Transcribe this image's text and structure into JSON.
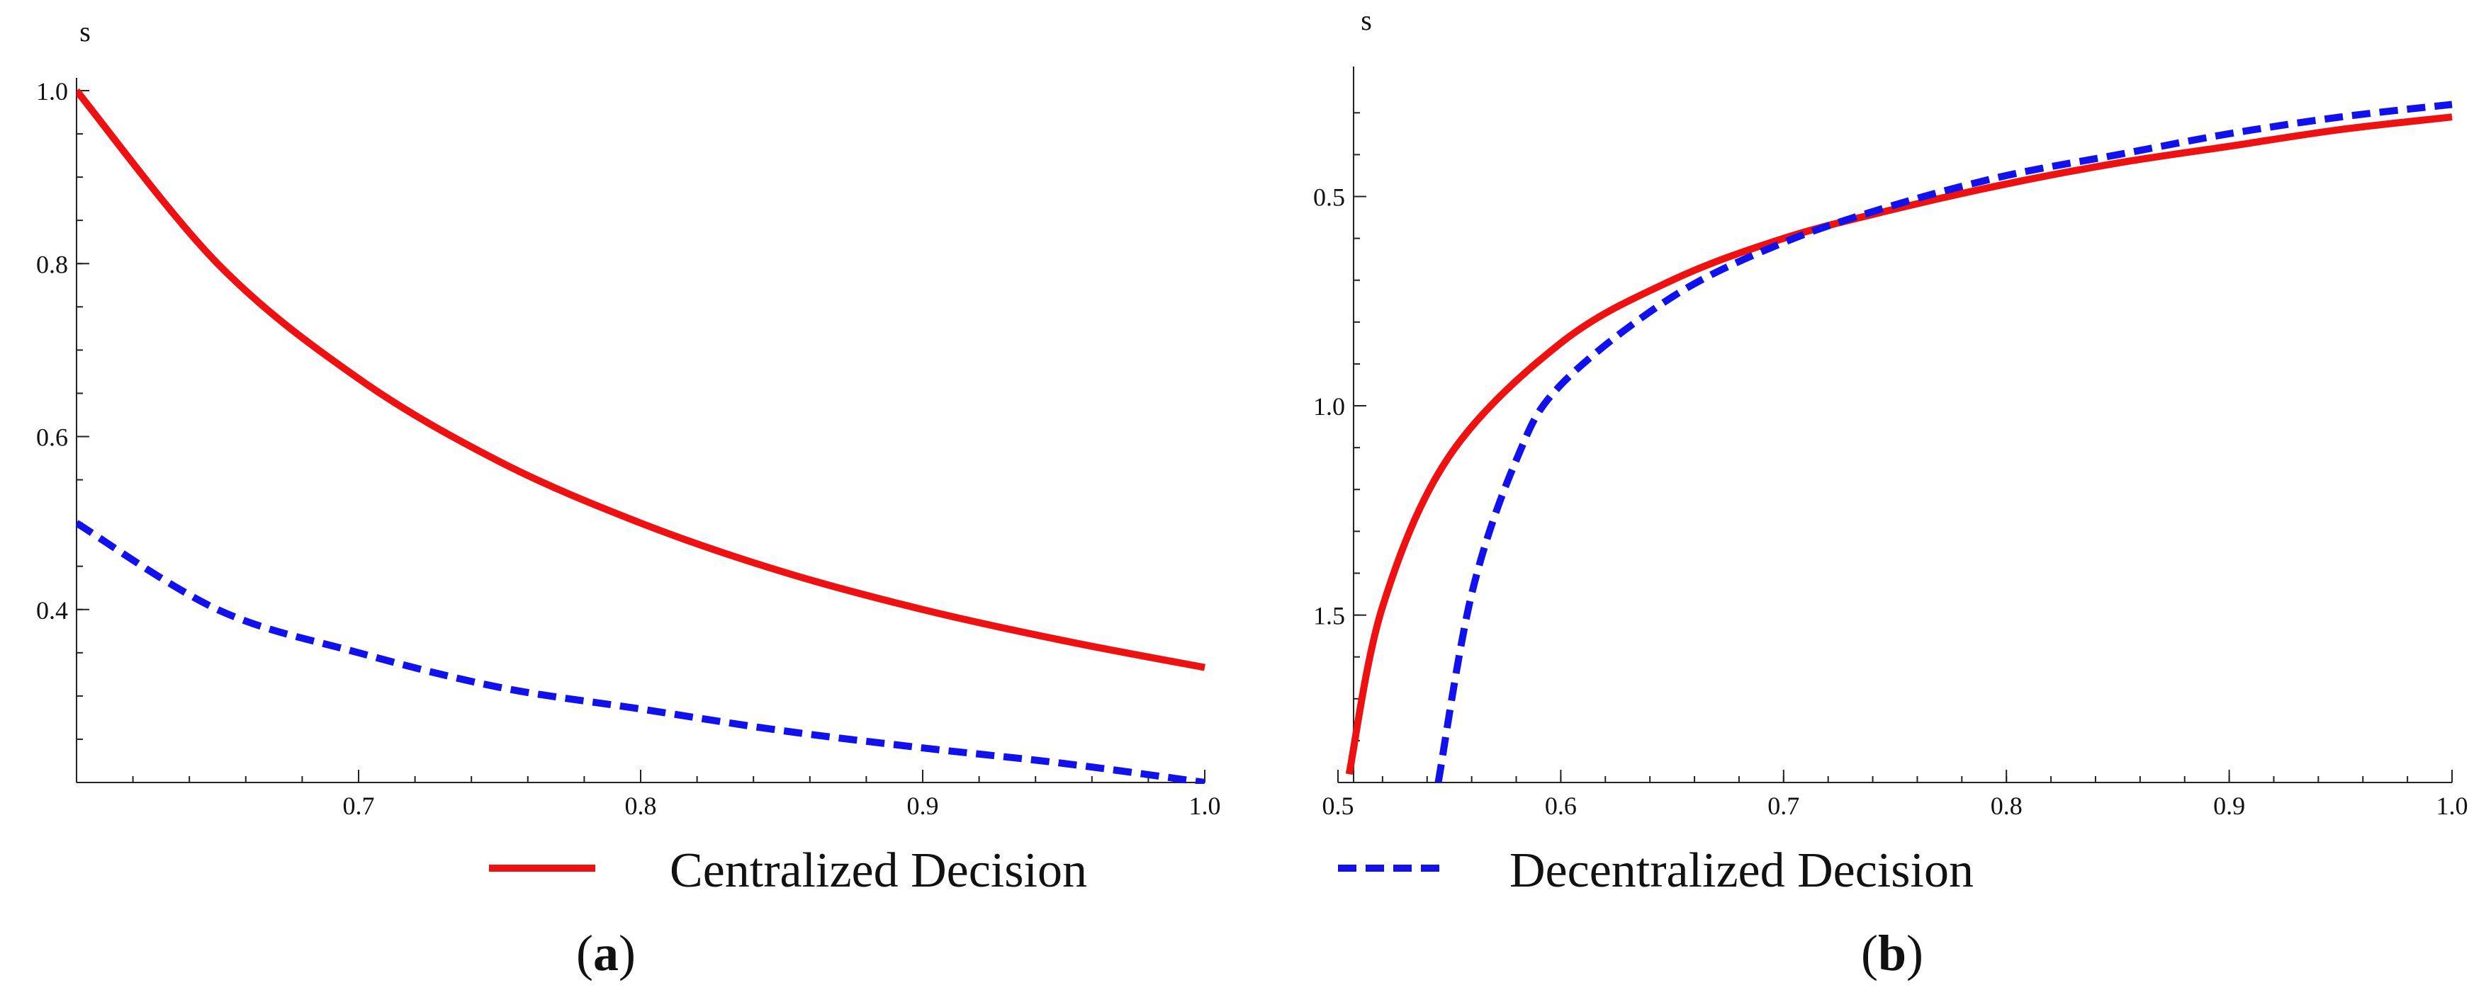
{
  "chart_data": [
    {
      "type": "line",
      "panel": "a",
      "ylabel": "s",
      "xlim": [
        0.6,
        1.0
      ],
      "ylim": [
        0.2,
        1.0
      ],
      "xticks": [
        0.7,
        0.8,
        0.9,
        1.0
      ],
      "xtick_labels": [
        "0.7",
        "0.8",
        "0.9",
        "1.0"
      ],
      "yticks": [
        0.4,
        0.6,
        0.8,
        1.0
      ],
      "ytick_labels": [
        "0.4",
        "0.6",
        "0.8",
        "1.0"
      ],
      "series": [
        {
          "name": "Centralized Decision",
          "style": "solid",
          "color": "#ee1111",
          "x": [
            0.6,
            0.65,
            0.7,
            0.75,
            0.8,
            0.85,
            0.9,
            0.95,
            1.0
          ],
          "y": [
            1.0,
            0.8,
            0.667,
            0.571,
            0.5,
            0.444,
            0.4,
            0.364,
            0.333
          ]
        },
        {
          "name": "Decentralized Decision",
          "style": "dashed",
          "color": "#1111ee",
          "x": [
            0.6,
            0.65,
            0.7,
            0.75,
            0.8,
            0.85,
            0.9,
            0.95,
            1.0
          ],
          "y": [
            0.5,
            0.4,
            0.35,
            0.31,
            0.285,
            0.26,
            0.24,
            0.222,
            0.2
          ]
        }
      ]
    },
    {
      "type": "line",
      "panel": "b",
      "ylabel": "s",
      "xlim": [
        0.5,
        1.0
      ],
      "ylim": [
        1.9,
        0.22
      ],
      "y_inverted": true,
      "xticks": [
        0.5,
        0.6,
        0.7,
        0.8,
        0.9,
        1.0
      ],
      "xtick_labels": [
        "0.5",
        "0.6",
        "0.7",
        "0.8",
        "0.9",
        "1.0"
      ],
      "yticks": [
        0.5,
        1.0,
        1.5
      ],
      "ytick_labels": [
        "0.5",
        "1.0",
        "1.5"
      ],
      "series": [
        {
          "name": "Centralized Decision",
          "style": "solid",
          "color": "#ee1111",
          "x": [
            0.505,
            0.52,
            0.55,
            0.6,
            0.65,
            0.7,
            0.75,
            0.8,
            0.85,
            0.9,
            0.95,
            1.0
          ],
          "y": [
            1.88,
            1.48,
            1.12,
            0.85,
            0.7,
            0.6,
            0.53,
            0.47,
            0.42,
            0.38,
            0.34,
            0.31
          ]
        },
        {
          "name": "Decentralized Decision",
          "style": "dashed",
          "color": "#1111ee",
          "x": [
            0.545,
            0.56,
            0.58,
            0.6,
            0.65,
            0.7,
            0.75,
            0.8,
            0.85,
            0.9,
            0.95,
            1.0
          ],
          "y": [
            1.9,
            1.45,
            1.13,
            0.95,
            0.74,
            0.61,
            0.52,
            0.45,
            0.4,
            0.35,
            0.31,
            0.28
          ]
        }
      ]
    }
  ],
  "legend": {
    "centralized": "Centralized Decision",
    "decentralized": "Decentralized Decision",
    "centralized_color": "#ee1111",
    "decentralized_color": "#1111ee"
  },
  "panel_labels": {
    "a": "a",
    "b": "b",
    "open": "(",
    "close": ")"
  }
}
